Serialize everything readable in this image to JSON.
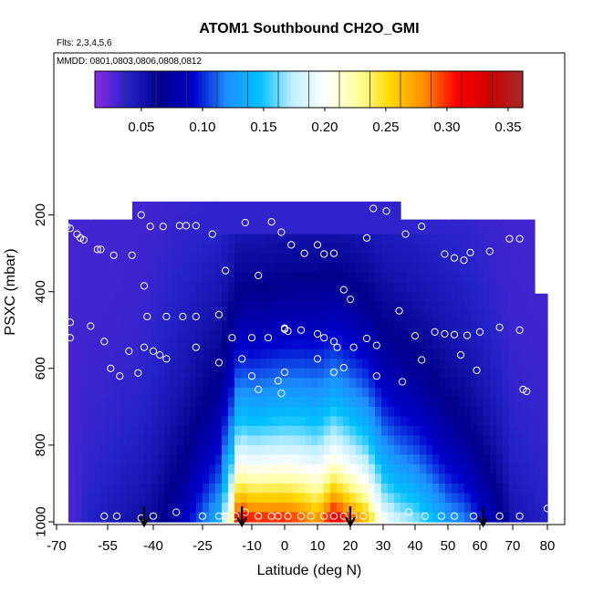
{
  "chart_data": {
    "type": "heatmap",
    "title": "ATOM1 Southbound CH2O_GMI",
    "subtitle_flights": "Flts: 2,3,4,5,6",
    "subtitle_dates": "MMDD: 0801,0803,0806,0808,0812",
    "xlabel": "Latitude (deg N)",
    "ylabel": "PSXC (mbar)",
    "x_ticks": [
      "-70",
      "-55",
      "-40",
      "-25",
      "-10",
      "0",
      "10",
      "20",
      "30",
      "40",
      "50",
      "60",
      "70",
      "80"
    ],
    "x_tick_values": [
      -70,
      -55,
      -40,
      -25,
      -10,
      0,
      10,
      20,
      30,
      40,
      50,
      60,
      70,
      80
    ],
    "y_ticks": [
      "200",
      "400",
      "600",
      "800",
      "1000"
    ],
    "y_tick_values": [
      200,
      400,
      600,
      800,
      1000
    ],
    "xlim": [
      -70,
      80
    ],
    "ylim_reversed": [
      1000,
      0
    ],
    "colorbar": {
      "ticks": [
        "0.05",
        "0.10",
        "0.15",
        "0.20",
        "0.25",
        "0.30",
        "0.35"
      ],
      "tick_values": [
        0.05,
        0.1,
        0.15,
        0.2,
        0.25,
        0.3,
        0.35
      ],
      "range": [
        0.012,
        0.362
      ],
      "colors": [
        "#8a2be2",
        "#2222c8",
        "#00008b",
        "#0000cd",
        "#1e90ff",
        "#00bfff",
        "#bfefff",
        "#ffffff",
        "#ffffa0",
        "#ffd700",
        "#ff8c00",
        "#ff0000",
        "#cd0000",
        "#a52a2a"
      ]
    },
    "field": {
      "description_rows_top_pressure": [
        150,
        200,
        250,
        300,
        350,
        400,
        450,
        500,
        550,
        600,
        650,
        700,
        750,
        800,
        850,
        900,
        950,
        1000
      ],
      "profile_lat": [
        -70,
        -60,
        -50,
        -40,
        -30,
        -20,
        -16,
        -14,
        -10,
        -5,
        0,
        5,
        10,
        15,
        20,
        25,
        30,
        35,
        40,
        45,
        50,
        55,
        60,
        65,
        70,
        80
      ],
      "surface_values": [
        0.02,
        0.04,
        0.05,
        0.06,
        0.09,
        0.14,
        0.24,
        0.33,
        0.31,
        0.31,
        0.31,
        0.3,
        0.28,
        0.33,
        0.3,
        0.27,
        0.2,
        0.18,
        0.17,
        0.15,
        0.13,
        0.12,
        0.1,
        0.08,
        0.05,
        0.04
      ]
    },
    "aircraft_points": [
      [
        -68,
        225
      ],
      [
        -67,
        230
      ],
      [
        -66,
        235
      ],
      [
        -64,
        250
      ],
      [
        -63,
        260
      ],
      [
        -62,
        265
      ],
      [
        -58,
        290
      ],
      [
        -57,
        290
      ],
      [
        -53,
        305
      ],
      [
        -47,
        305
      ],
      [
        -44,
        200
      ],
      [
        -41,
        230
      ],
      [
        -37,
        230
      ],
      [
        -32,
        228
      ],
      [
        -30,
        228
      ],
      [
        -27,
        228
      ],
      [
        -22,
        250
      ],
      [
        -18,
        345
      ],
      [
        -12,
        220
      ],
      [
        -8,
        358
      ],
      [
        -4,
        218
      ],
      [
        -1,
        245
      ],
      [
        2,
        278
      ],
      [
        6,
        300
      ],
      [
        10,
        278
      ],
      [
        12,
        302
      ],
      [
        15,
        300
      ],
      [
        18,
        395
      ],
      [
        20,
        420
      ],
      [
        25,
        260
      ],
      [
        27,
        183
      ],
      [
        31,
        190
      ],
      [
        37,
        250
      ],
      [
        42,
        230
      ],
      [
        49,
        302
      ],
      [
        52,
        312
      ],
      [
        55,
        318
      ],
      [
        57,
        298
      ],
      [
        63,
        295
      ],
      [
        69,
        262
      ],
      [
        72,
        262
      ],
      [
        -43,
        385
      ],
      [
        -42,
        465
      ],
      [
        -36,
        465
      ],
      [
        -31,
        465
      ],
      [
        -27,
        465
      ],
      [
        -20,
        460
      ],
      [
        -16,
        520
      ],
      [
        -10,
        520
      ],
      [
        -5,
        520
      ],
      [
        0,
        495
      ],
      [
        0,
        498
      ],
      [
        1,
        503
      ],
      [
        5,
        500
      ],
      [
        10,
        510
      ],
      [
        12,
        520
      ],
      [
        15,
        530
      ],
      [
        16,
        545
      ],
      [
        21,
        545
      ],
      [
        25,
        522
      ],
      [
        28,
        540
      ],
      [
        35,
        450
      ],
      [
        40,
        515
      ],
      [
        46,
        505
      ],
      [
        49,
        510
      ],
      [
        52,
        512
      ],
      [
        56,
        514
      ],
      [
        60,
        505
      ],
      [
        66,
        493
      ],
      [
        72,
        500
      ],
      [
        -66,
        480
      ],
      [
        -66,
        520
      ],
      [
        -60,
        490
      ],
      [
        -56,
        530
      ],
      [
        -54,
        600
      ],
      [
        -51,
        620
      ],
      [
        -48,
        555
      ],
      [
        -45,
        612
      ],
      [
        -43,
        545
      ],
      [
        -40,
        555
      ],
      [
        -38,
        565
      ],
      [
        -36,
        575
      ],
      [
        -27,
        545
      ],
      [
        -20,
        585
      ],
      [
        -13,
        575
      ],
      [
        -10,
        620
      ],
      [
        -8,
        655
      ],
      [
        -2,
        632
      ],
      [
        0,
        610
      ],
      [
        -1,
        665
      ],
      [
        10,
        575
      ],
      [
        15,
        610
      ],
      [
        18,
        598
      ],
      [
        28,
        620
      ],
      [
        36,
        635
      ],
      [
        42,
        578
      ],
      [
        54,
        565
      ],
      [
        59,
        605
      ],
      [
        73,
        655
      ],
      [
        74,
        660
      ],
      [
        -68,
        970
      ],
      [
        -56,
        985
      ],
      [
        -52,
        985
      ],
      [
        -44,
        990
      ],
      [
        -40,
        985
      ],
      [
        -33,
        975
      ],
      [
        -25,
        985
      ],
      [
        -20,
        985
      ],
      [
        -18,
        985
      ],
      [
        -15,
        985
      ],
      [
        -12,
        975
      ],
      [
        -8,
        985
      ],
      [
        -4,
        985
      ],
      [
        -2,
        985
      ],
      [
        1,
        985
      ],
      [
        5,
        985
      ],
      [
        8,
        985
      ],
      [
        12,
        985
      ],
      [
        15,
        985
      ],
      [
        18,
        985
      ],
      [
        21,
        985
      ],
      [
        24,
        985
      ],
      [
        30,
        985
      ],
      [
        38,
        975
      ],
      [
        43,
        985
      ],
      [
        48,
        985
      ],
      [
        52,
        985
      ],
      [
        58,
        985
      ],
      [
        66,
        985
      ],
      [
        72,
        985
      ],
      [
        80,
        965
      ]
    ],
    "flight_arrows_lat": [
      -43,
      -13,
      20,
      61
    ]
  }
}
